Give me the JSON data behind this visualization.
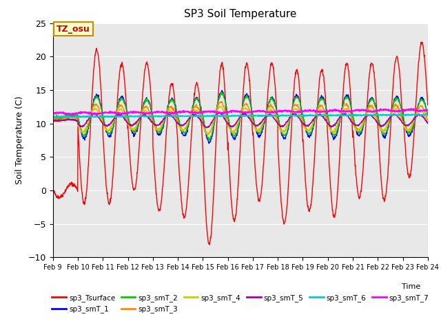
{
  "title": "SP3 Soil Temperature",
  "xlabel": "Time",
  "ylabel": "Soil Temperature (C)",
  "ylim": [
    -10,
    25
  ],
  "xlim": [
    0,
    15
  ],
  "x_tick_labels": [
    "Feb 9",
    "Feb 10",
    "Feb 11",
    "Feb 12",
    "Feb 13",
    "Feb 14",
    "Feb 15",
    "Feb 16",
    "Feb 17",
    "Feb 18",
    "Feb 19",
    "Feb 20",
    "Feb 21",
    "Feb 22",
    "Feb 23",
    "Feb 24"
  ],
  "annotation_text": "TZ_osu",
  "annotation_bg": "#FFFFCC",
  "annotation_border": "#CC8800",
  "annotation_text_color": "#CC0000",
  "background_color": "#E8E8E8",
  "series_colors": {
    "sp3_Tsurface": "#FF0000",
    "sp3_smT_1": "#0000FF",
    "sp3_smT_2": "#00CC00",
    "sp3_smT_3": "#FF8800",
    "sp3_smT_4": "#CCCC00",
    "sp3_smT_5": "#AA00AA",
    "sp3_smT_6": "#00CCCC",
    "sp3_smT_7": "#FF00FF"
  },
  "legend_series": [
    "sp3_Tsurface",
    "sp3_smT_1",
    "sp3_smT_2",
    "sp3_smT_3",
    "sp3_smT_4",
    "sp3_smT_5",
    "sp3_smT_6",
    "sp3_smT_7"
  ]
}
